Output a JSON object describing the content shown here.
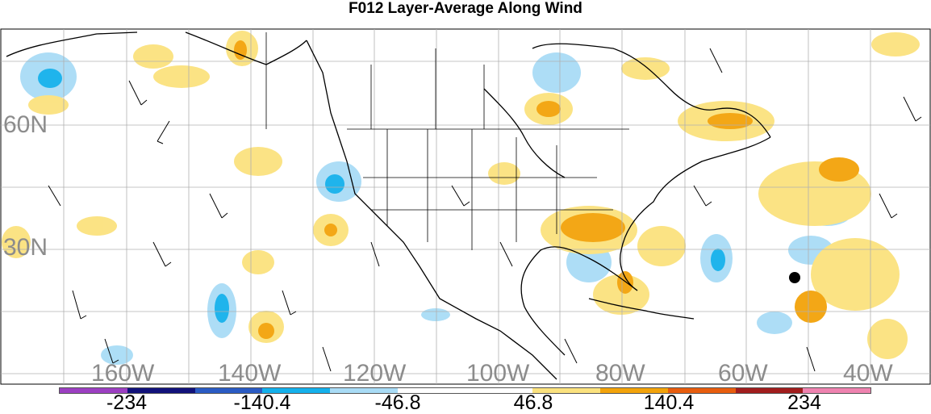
{
  "title": "F012 Layer-Average Along Wind",
  "map": {
    "lat_labels": [
      "60N",
      "30N"
    ],
    "lon_labels": [
      "160W",
      "140W",
      "120W",
      "100W",
      "80W",
      "60W",
      "40W"
    ],
    "marker": "black-dot"
  },
  "colorbar": {
    "colors": [
      "#9c3fc2",
      "#11117a",
      "#2a5bc4",
      "#14b1ec",
      "#a9dcf6",
      "#ffffff",
      "#ffffff",
      "#fbe27e",
      "#f3a30a",
      "#e85d0e",
      "#a11d1d",
      "#ef83b0"
    ],
    "labels": [
      "-234",
      "-140.4",
      "-46.8",
      "46.8",
      "140.4",
      "234"
    ]
  }
}
